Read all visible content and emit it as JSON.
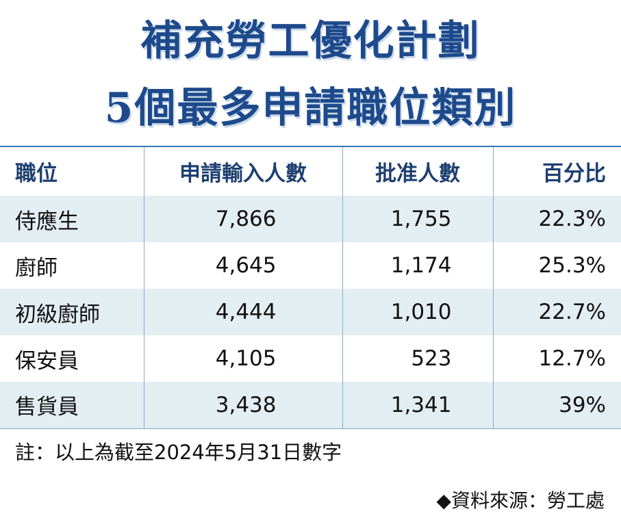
{
  "title": {
    "line1": "補充勞工優化計劃",
    "line2": "5個最多申請職位類別"
  },
  "table": {
    "headers": [
      "職位",
      "申請輸入人數",
      "批准人數",
      "百分比"
    ],
    "rows": [
      {
        "position": "侍應生",
        "applied": "7,866",
        "approved": "1,755",
        "percent": "22.3%"
      },
      {
        "position": "廚師",
        "applied": "4,645",
        "approved": "1,174",
        "percent": "25.3%"
      },
      {
        "position": "初級廚師",
        "applied": "4,444",
        "approved": "1,010",
        "percent": "22.7%"
      },
      {
        "position": "保安員",
        "applied": "4,105",
        "approved": "523",
        "percent": "12.7%"
      },
      {
        "position": "售貨員",
        "applied": "3,438",
        "approved": "1,341",
        "percent": "39%"
      }
    ],
    "note": "註：以上為截至2024年5月31日數字"
  },
  "source": "◆資料來源：勞工處"
}
